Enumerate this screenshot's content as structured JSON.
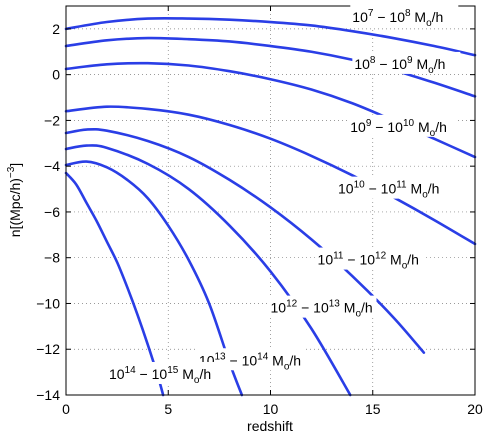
{
  "chart_data": {
    "type": "line",
    "xlabel": "redshift",
    "ylabel": "n[(Mpc/h)",
    "ylabel_exp": "−3",
    "ylabel_close": "]",
    "xlim": [
      0,
      20
    ],
    "ylim": [
      -14,
      3
    ],
    "xticks": [
      0,
      5,
      10,
      15,
      20
    ],
    "yticks": [
      -14,
      -12,
      -10,
      -8,
      -6,
      -4,
      -2,
      0,
      2
    ],
    "xtick_labels": [
      "0",
      "5",
      "10",
      "15",
      "20"
    ],
    "ytick_labels": [
      "−14",
      "−12",
      "−10",
      "−8",
      "−6",
      "−4",
      "−2",
      "0",
      "2"
    ],
    "grid": true,
    "line_color": "#2a3ee6",
    "series": [
      {
        "x": [
          0,
          2,
          4,
          6,
          8,
          10,
          12,
          14,
          16,
          18,
          20
        ],
        "y": [
          2.0,
          2.3,
          2.45,
          2.45,
          2.4,
          2.3,
          2.15,
          1.9,
          1.6,
          1.25,
          0.85
        ]
      },
      {
        "x": [
          0,
          2,
          4,
          6,
          8,
          10,
          12,
          14,
          16,
          18,
          20
        ],
        "y": [
          1.25,
          1.5,
          1.6,
          1.55,
          1.45,
          1.25,
          1.0,
          0.65,
          0.2,
          -0.35,
          -0.95
        ]
      },
      {
        "x": [
          0,
          2,
          4,
          6,
          8,
          10,
          12,
          14,
          16,
          18,
          20
        ],
        "y": [
          0.25,
          0.45,
          0.5,
          0.4,
          0.15,
          -0.2,
          -0.65,
          -1.25,
          -2.0,
          -2.8,
          -3.6
        ]
      },
      {
        "x": [
          0,
          2,
          4,
          6,
          8,
          10,
          12,
          14,
          16,
          18,
          20
        ],
        "y": [
          -1.6,
          -1.4,
          -1.5,
          -1.75,
          -2.2,
          -2.8,
          -3.55,
          -4.4,
          -5.35,
          -6.35,
          -7.4
        ]
      },
      {
        "x": [
          0,
          1,
          2,
          4,
          6,
          8,
          10,
          12,
          14,
          16,
          17.5
        ],
        "y": [
          -2.55,
          -2.4,
          -2.45,
          -2.9,
          -3.6,
          -4.6,
          -5.8,
          -7.2,
          -8.8,
          -10.6,
          -12.15
        ]
      },
      {
        "x": [
          0,
          1,
          2,
          4,
          6,
          8,
          10,
          12,
          13.9
        ],
        "y": [
          -3.25,
          -3.1,
          -3.2,
          -3.9,
          -5.0,
          -6.6,
          -8.6,
          -11.1,
          -14.0
        ]
      },
      {
        "x": [
          0,
          1,
          2,
          3,
          4,
          5,
          6,
          7,
          8,
          8.6
        ],
        "y": [
          -3.95,
          -3.8,
          -4.05,
          -4.6,
          -5.4,
          -6.6,
          -8.1,
          -10.0,
          -12.6,
          -14.0
        ]
      },
      {
        "x": [
          0,
          0.5,
          1,
          1.5,
          2,
          2.5,
          3,
          3.5,
          4,
          4.5,
          4.75
        ],
        "y": [
          -4.3,
          -4.8,
          -5.6,
          -6.4,
          -7.3,
          -8.2,
          -9.3,
          -10.5,
          -11.8,
          -13.2,
          -14.0
        ]
      }
    ],
    "annotations": [
      {
        "base_a": "10",
        "exp_a": "7",
        "sep": " − ",
        "base_b": "10",
        "exp_b": "8",
        "unit": " M",
        "unit_sub": "o",
        "unit_tail": "/h",
        "x": 14.0,
        "y": 2.3
      },
      {
        "base_a": "10",
        "exp_a": "8",
        "sep": " − ",
        "base_b": "10",
        "exp_b": "9",
        "unit": " M",
        "unit_sub": "o",
        "unit_tail": "/h",
        "x": 14.1,
        "y": 0.25
      },
      {
        "base_a": "10",
        "exp_a": "9",
        "sep": " − ",
        "base_b": "10",
        "exp_b": "10",
        "unit": " M",
        "unit_sub": "o",
        "unit_tail": "/h",
        "x": 13.9,
        "y": -2.5
      },
      {
        "base_a": "10",
        "exp_a": "10",
        "sep": " − ",
        "base_b": "10",
        "exp_b": "11",
        "unit": " M",
        "unit_sub": "o",
        "unit_tail": "/h",
        "x": 13.3,
        "y": -5.2
      },
      {
        "base_a": "10",
        "exp_a": "11",
        "sep": " − ",
        "base_b": "10",
        "exp_b": "12",
        "unit": " M",
        "unit_sub": "o",
        "unit_tail": "/h",
        "x": 12.3,
        "y": -8.3
      },
      {
        "base_a": "10",
        "exp_a": "12",
        "sep": " − ",
        "base_b": "10",
        "exp_b": "13",
        "unit": " M",
        "unit_sub": "o",
        "unit_tail": "/h",
        "x": 10.0,
        "y": -10.4
      },
      {
        "base_a": "10",
        "exp_a": "13",
        "sep": " − ",
        "base_b": "10",
        "exp_b": "14",
        "unit": " M",
        "unit_sub": "o",
        "unit_tail": "/h",
        "x": 6.5,
        "y": -12.7
      },
      {
        "base_a": "10",
        "exp_a": "14",
        "sep": " − ",
        "base_b": "10",
        "exp_b": "15",
        "unit": " M",
        "unit_sub": "o",
        "unit_tail": "/h",
        "x": 2.1,
        "y": -13.3
      }
    ]
  }
}
